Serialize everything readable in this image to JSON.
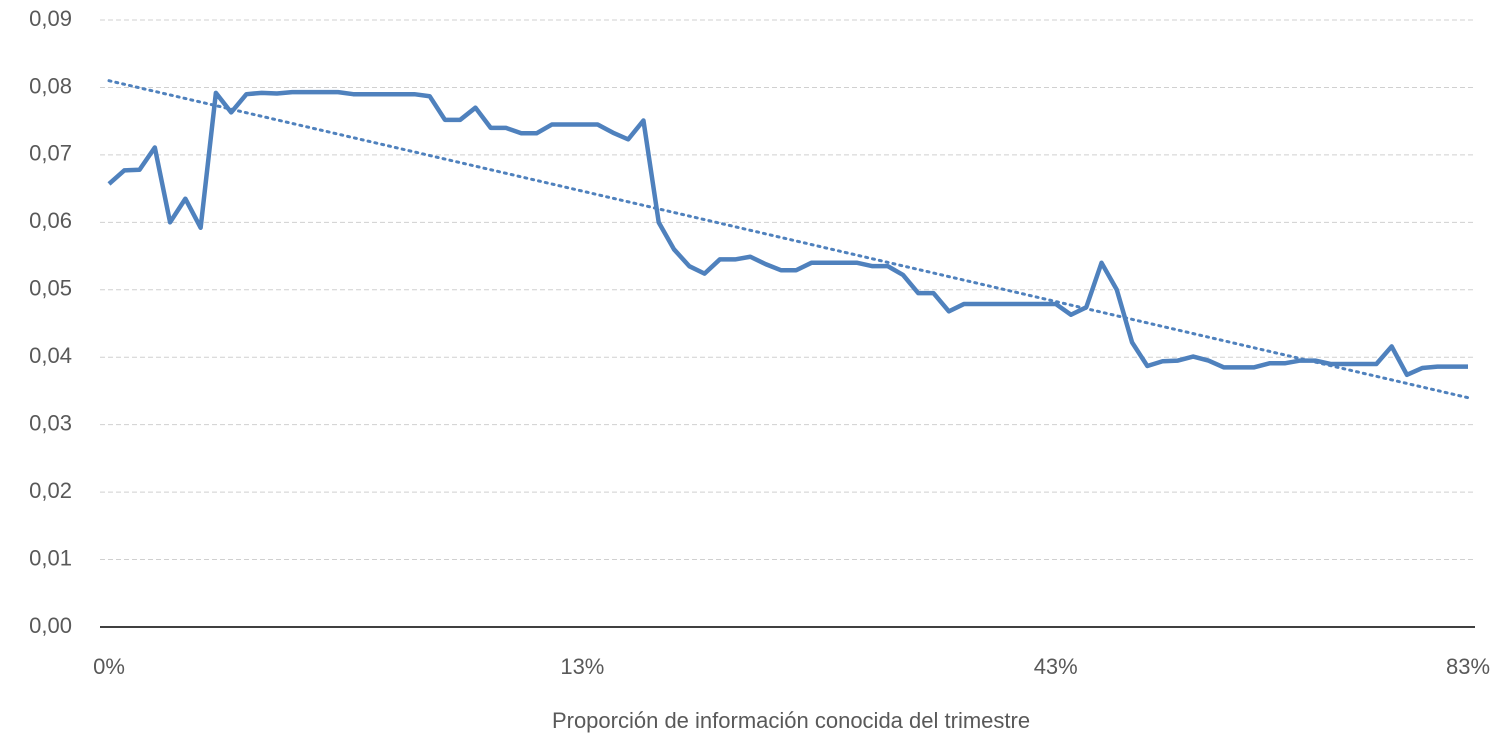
{
  "chart_data": {
    "type": "line",
    "x_axis_label": "Proporción de información conocida del trimestre",
    "categories": [
      "0%",
      null,
      null,
      null,
      null,
      null,
      null,
      null,
      null,
      null,
      null,
      null,
      null,
      null,
      null,
      null,
      null,
      null,
      null,
      null,
      null,
      null,
      null,
      null,
      null,
      null,
      null,
      null,
      null,
      null,
      null,
      "13%",
      null,
      null,
      null,
      null,
      null,
      null,
      null,
      null,
      null,
      null,
      null,
      null,
      null,
      null,
      null,
      null,
      null,
      null,
      null,
      null,
      null,
      null,
      null,
      null,
      null,
      null,
      null,
      null,
      null,
      null,
      "43%",
      null,
      null,
      null,
      null,
      null,
      null,
      null,
      null,
      null,
      null,
      null,
      null,
      null,
      null,
      null,
      null,
      null,
      null,
      null,
      null,
      null,
      null,
      null,
      null,
      null,
      null,
      "83%"
    ],
    "series": [
      {
        "color": "#4f81bd",
        "values": [
          0.0657,
          0.0677,
          0.0678,
          0.0711,
          0.06,
          0.0635,
          0.0592,
          0.0792,
          0.0763,
          0.079,
          0.0792,
          0.0791,
          0.0793,
          0.0793,
          0.0793,
          0.0793,
          0.079,
          0.079,
          0.079,
          0.079,
          0.079,
          0.0787,
          0.0752,
          0.0752,
          0.077,
          0.074,
          0.074,
          0.0732,
          0.0732,
          0.0745,
          0.0745,
          0.0745,
          0.0745,
          0.0733,
          0.0723,
          0.0751,
          0.06,
          0.056,
          0.0535,
          0.0524,
          0.0545,
          0.0545,
          0.0549,
          0.0538,
          0.0529,
          0.0529,
          0.054,
          0.054,
          0.054,
          0.054,
          0.0535,
          0.0535,
          0.0522,
          0.0495,
          0.0495,
          0.0468,
          0.0479,
          0.0479,
          0.0479,
          0.0479,
          0.0479,
          0.0479,
          0.0479,
          0.0463,
          0.0474,
          0.054,
          0.05,
          0.0422,
          0.0387,
          0.0394,
          0.0395,
          0.0401,
          0.0395,
          0.0385,
          0.0385,
          0.0385,
          0.0391,
          0.0391,
          0.0395,
          0.0395,
          0.039,
          0.039,
          0.039,
          0.039,
          0.0416,
          0.0374,
          0.0384,
          0.0386,
          0.0386,
          0.0386
        ]
      }
    ],
    "trendline": {
      "style": "dotted",
      "color": "#4f81bd",
      "values": [
        0.081,
        0.034
      ]
    },
    "ylim": [
      0,
      0.09
    ],
    "yticks": [
      {
        "value": 0,
        "label": "0,00"
      },
      {
        "value": 0.01,
        "label": "0,01"
      },
      {
        "value": 0.02,
        "label": "0,02"
      },
      {
        "value": 0.03,
        "label": "0,03"
      },
      {
        "value": 0.04,
        "label": "0,04"
      },
      {
        "value": 0.05,
        "label": "0,05"
      },
      {
        "value": 0.06,
        "label": "0,06"
      },
      {
        "value": 0.07,
        "label": "0,07"
      },
      {
        "value": 0.08,
        "label": "0,08"
      },
      {
        "value": 0.09,
        "label": "0,09"
      }
    ],
    "grid": true
  }
}
